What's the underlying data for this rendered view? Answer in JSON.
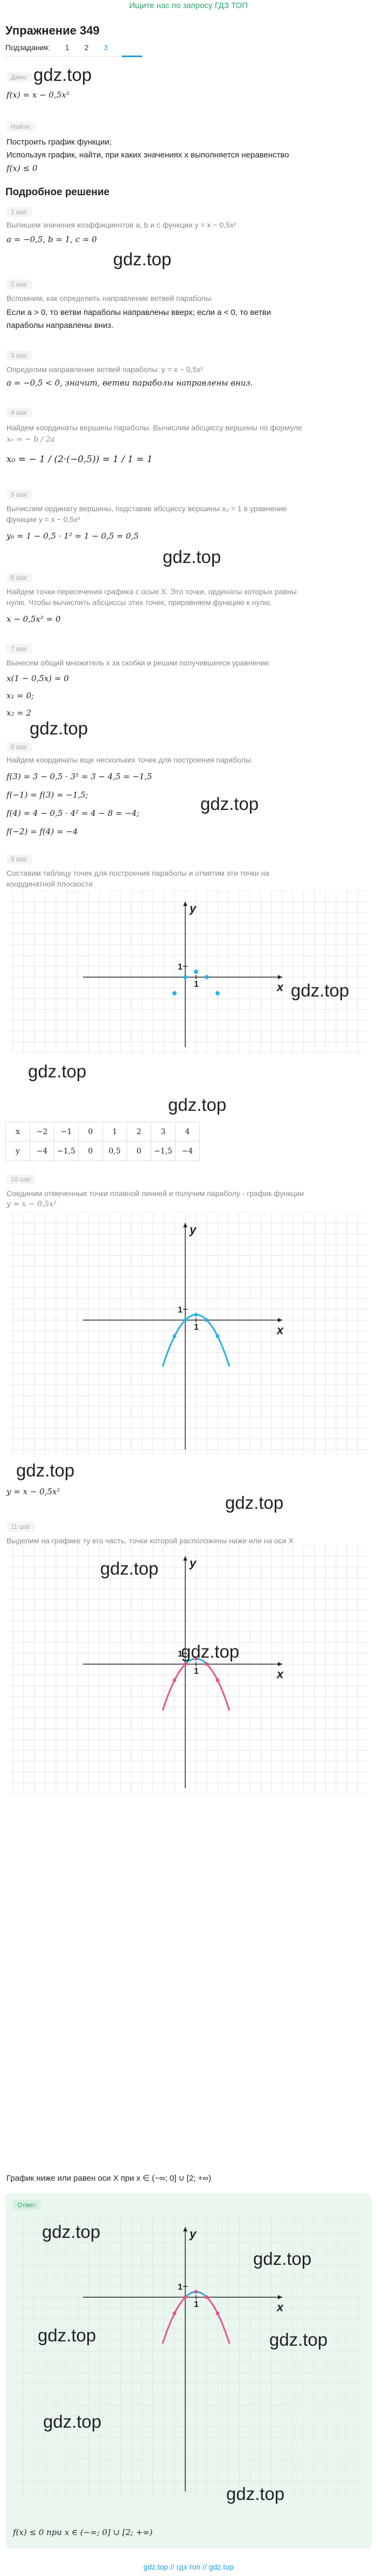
{
  "top_link": "Ищите нас по запросу ГДЗ ТОП",
  "title": "Упражнение 349",
  "subtasks": {
    "label": "Подзадания:",
    "items": [
      "1",
      "2",
      "3"
    ]
  },
  "watermark": "gdz.top",
  "given": {
    "label": "Дано:",
    "text": "f(x) = x − 0,5x²"
  },
  "find": {
    "label": "Найти:",
    "line1": "Построить график функции;",
    "line2": "Используя график, найти, при каких значениях x выполняется неравенство",
    "line3": "f(x) ≤ 0"
  },
  "solution_title": "Подробное решение",
  "steps": [
    {
      "label": "1 шаг",
      "desc": "Выпишем значения коэффициентов a, b и c функции y = x − 0,5x²",
      "math": "a = −0,5, b = 1, c = 0"
    },
    {
      "label": "2 шаг",
      "desc": "Вспомним, как определить направление ветвей параболы.",
      "line1": "Если a > 0, то ветви параболы направлены вверх; если a < 0, то ветви",
      "line2": "параболы направлены вниз."
    },
    {
      "label": "3 шаг",
      "desc": "Определим направление ветвей параболы: y = x − 0,5x²",
      "math": "a = −0,5 < 0, значит, ветви параболы направлены вниз."
    },
    {
      "label": "4 шаг",
      "desc": "Найдем координаты вершины параболы. Вычислим абсциссу вершины по формуле",
      "formula": "x₀ = − b / 2a",
      "math": "x₀ = − 1 / (2·(−0,5)) = 1 / 1 = 1"
    },
    {
      "label": "5 шаг",
      "desc1": "Вычислим ординату вершины, подставив абсциссу вершины x₀ = 1 в уравнение",
      "desc2": "функции y = x − 0,5x²",
      "math": "y₀ = 1 − 0,5 · 1² = 1 − 0,5 = 0,5"
    },
    {
      "label": "6 шаг",
      "desc1": "Найдем точки пересечения графика с осью X. Это точки, ординаты которых равны",
      "desc2": "нулю. Чтобы вычислить абсциссы этих точек, приравняем функцию к нулю.",
      "math": "x − 0,5x² = 0"
    },
    {
      "label": "7 шаг",
      "desc": "Вынесем общий множитель x за скобки и решим получившееся уравнение",
      "m1": "x(1 − 0,5x) = 0",
      "m2": "x₁ = 0;",
      "m3": "x₂ = 2"
    },
    {
      "label": "8 шаг",
      "desc": "Найдем координаты еще нескольких точек для построения параболы.",
      "m1": "f(3) = 3 − 0,5 · 3² = 3 − 4,5 = −1,5",
      "m2": "f(−1) = f(3) = −1,5;",
      "m3": "f(4) = 4 − 0,5 · 4² = 4 − 8 = −4;",
      "m4": "f(−2) = f(4) = −4"
    },
    {
      "label": "9 шаг",
      "desc1": "Составим таблицу точек для построения параболы и отметим эти точки на",
      "desc2": "координатной плоскости"
    },
    {
      "label": "10 шаг",
      "desc1": "Соединим отмеченные точки плавной линией и получим параболу - график функции",
      "desc2": "y = x − 0,5x²",
      "result": "y = x − 0,5x²"
    },
    {
      "label": "11 шаг",
      "desc": "Выделим на графике ту его часть, точки которой расположены ниже или на оси X"
    }
  ],
  "conclusion": "График ниже или равен оси X при x ∈ (−∞; 0] ∪ [2; +∞)",
  "answer": {
    "label": "Ответ:",
    "text": "f(x) ≤ 0 при x ∈ (−∞; 0] ∪ [2; +∞)"
  },
  "axis": {
    "x": "x",
    "y": "y",
    "one_x": "1",
    "one_y": "1"
  },
  "table": {
    "row_x": [
      "x",
      "−2",
      "−1",
      "0",
      "1",
      "2",
      "3",
      "4"
    ],
    "row_y": [
      "y",
      "−4",
      "−1,5",
      "0",
      "0,5",
      "0",
      "−1,5",
      "−4"
    ]
  },
  "footer": "gdz.top // гдз топ // gdz.top",
  "colors": {
    "accent": "#1e9bd7",
    "points": "#2ab4e8",
    "curve_blue": "#29b0e6",
    "curve_pink": "#e8538b",
    "answer_bg": "#eaf7ee",
    "top_link": "#2aa36a"
  },
  "chart_data": {
    "type": "line",
    "x": [
      -2,
      -1,
      0,
      1,
      2,
      3,
      4
    ],
    "y": [
      -4,
      -1.5,
      0,
      0.5,
      0,
      -1.5,
      -4
    ],
    "xlabel": "x",
    "ylabel": "y"
  }
}
